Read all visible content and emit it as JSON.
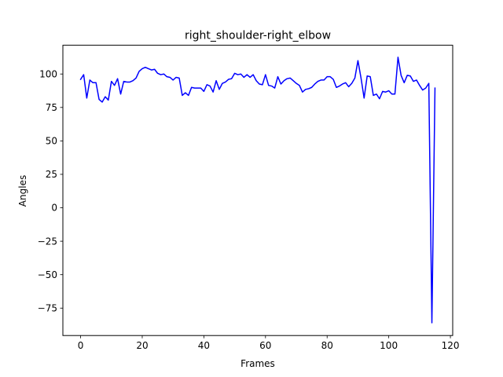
{
  "chart_data": {
    "type": "line",
    "title": "right_shoulder-right_elbow",
    "xlabel": "Frames",
    "ylabel": "Angles",
    "xlim": [
      -5.75,
      120.75
    ],
    "ylim": [
      -95.5,
      121.5
    ],
    "xticks": [
      0,
      20,
      40,
      60,
      80,
      100,
      120
    ],
    "yticks": [
      -75,
      -50,
      -25,
      0,
      25,
      50,
      75,
      100
    ],
    "grid": false,
    "series_color": "#0000ff",
    "series": [
      {
        "values": [
          96,
          99.5,
          82,
          95.5,
          93.5,
          93.5,
          81,
          79,
          83,
          80.5,
          94.5,
          91.5,
          96.5,
          85,
          94.5,
          94,
          94,
          95,
          97,
          102,
          104,
          105,
          104,
          103,
          103.5,
          100.5,
          99.5,
          100,
          98,
          97.5,
          95.5,
          97.5,
          97,
          84,
          86,
          84,
          90,
          89.5,
          89.5,
          89.5,
          87,
          92,
          91,
          86.5,
          95,
          88.5,
          93,
          94,
          96,
          96.5,
          100.5,
          99.5,
          100,
          97.5,
          99.5,
          97.5,
          99.5,
          95,
          92.5,
          92,
          99.5,
          91.5,
          91,
          89.5,
          98,
          92.5,
          95,
          96.5,
          97,
          95,
          93,
          91.5,
          86.5,
          88.5,
          89,
          90,
          92.5,
          94.5,
          95.5,
          95.5,
          98,
          98,
          96,
          90,
          91,
          92.5,
          93.5,
          90.5,
          93,
          97,
          110,
          97,
          82,
          98.5,
          98,
          84,
          85,
          81.5,
          87,
          86.5,
          87.5,
          85,
          85,
          112.5,
          99,
          93.5,
          99,
          98.5,
          94.5,
          95.5,
          91.5,
          88,
          89.5,
          93,
          -86,
          89.5
        ]
      }
    ]
  }
}
